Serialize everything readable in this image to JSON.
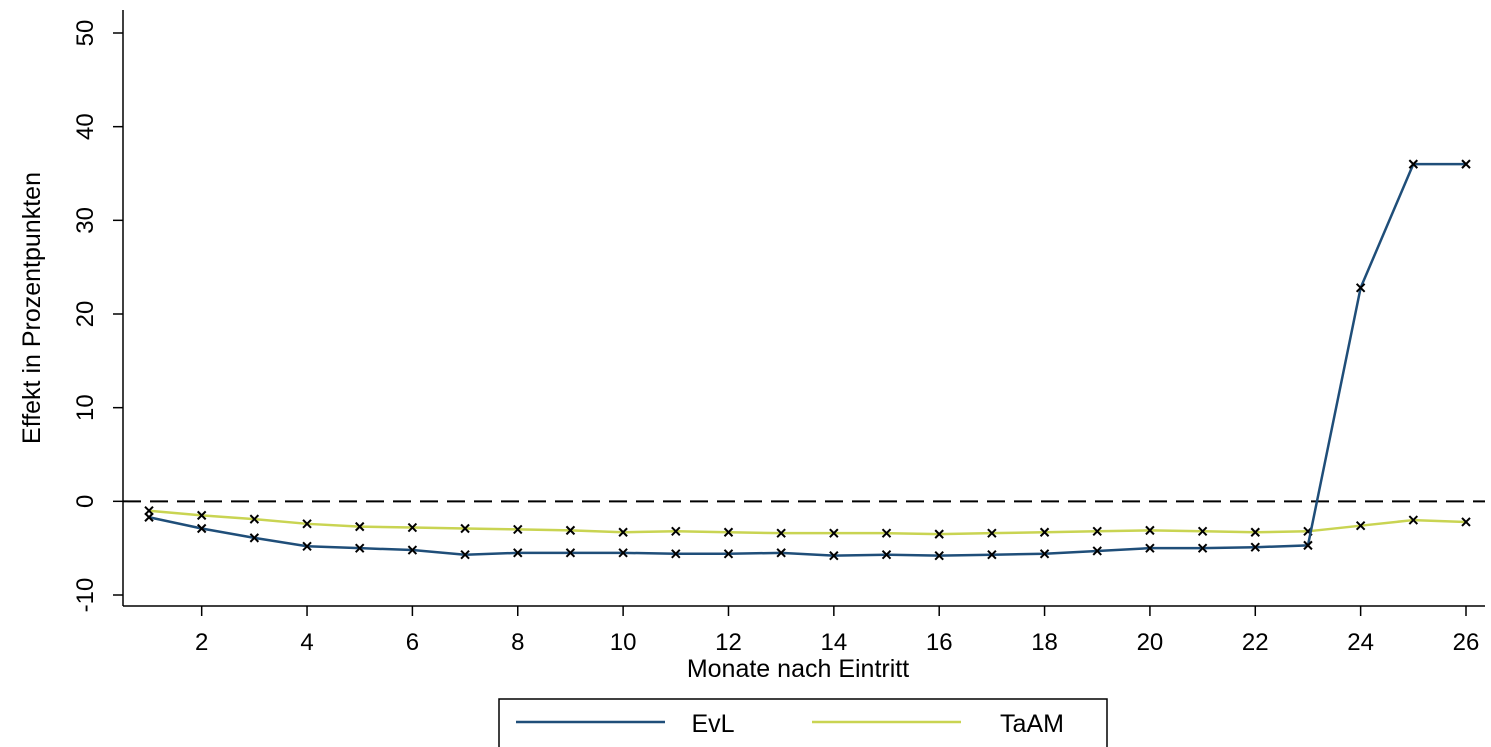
{
  "chart_data": {
    "type": "line",
    "title": "",
    "xlabel": "Monate nach Eintritt",
    "ylabel": "Effekt in Prozentpunkten",
    "xlim": [
      1,
      26
    ],
    "ylim": [
      -12,
      52
    ],
    "x_ticks": [
      2,
      4,
      6,
      8,
      10,
      12,
      14,
      16,
      18,
      20,
      22,
      24,
      26
    ],
    "y_ticks": [
      -10,
      0,
      10,
      20,
      30,
      40,
      50
    ],
    "reference_line": {
      "y": 0,
      "style": "dashed"
    },
    "grid": false,
    "legend_position": "bottom",
    "x": [
      1,
      2,
      3,
      4,
      5,
      6,
      7,
      8,
      9,
      10,
      11,
      12,
      13,
      14,
      15,
      16,
      17,
      18,
      19,
      20,
      21,
      22,
      23,
      24,
      25,
      26
    ],
    "series": [
      {
        "name": "EvL",
        "color": "#1f4e79",
        "marker": "x",
        "values": [
          -1.7,
          -2.9,
          -3.9,
          -4.8,
          -5.0,
          -5.2,
          -5.7,
          -5.5,
          -5.5,
          -5.5,
          -5.6,
          -5.6,
          -5.5,
          -5.8,
          -5.7,
          -5.8,
          -5.7,
          -5.6,
          -5.3,
          -5.0,
          -5.0,
          -4.9,
          -4.7,
          22.8,
          36.0,
          36.0
        ]
      },
      {
        "name": "TaAM",
        "color": "#c9d452",
        "marker": "x",
        "values": [
          -1.0,
          -1.5,
          -1.9,
          -2.4,
          -2.7,
          -2.8,
          -2.9,
          -3.0,
          -3.1,
          -3.3,
          -3.2,
          -3.3,
          -3.4,
          -3.4,
          -3.4,
          -3.5,
          -3.4,
          -3.3,
          -3.2,
          -3.1,
          -3.2,
          -3.3,
          -3.2,
          -2.6,
          -2.0,
          -2.2
        ]
      }
    ]
  }
}
